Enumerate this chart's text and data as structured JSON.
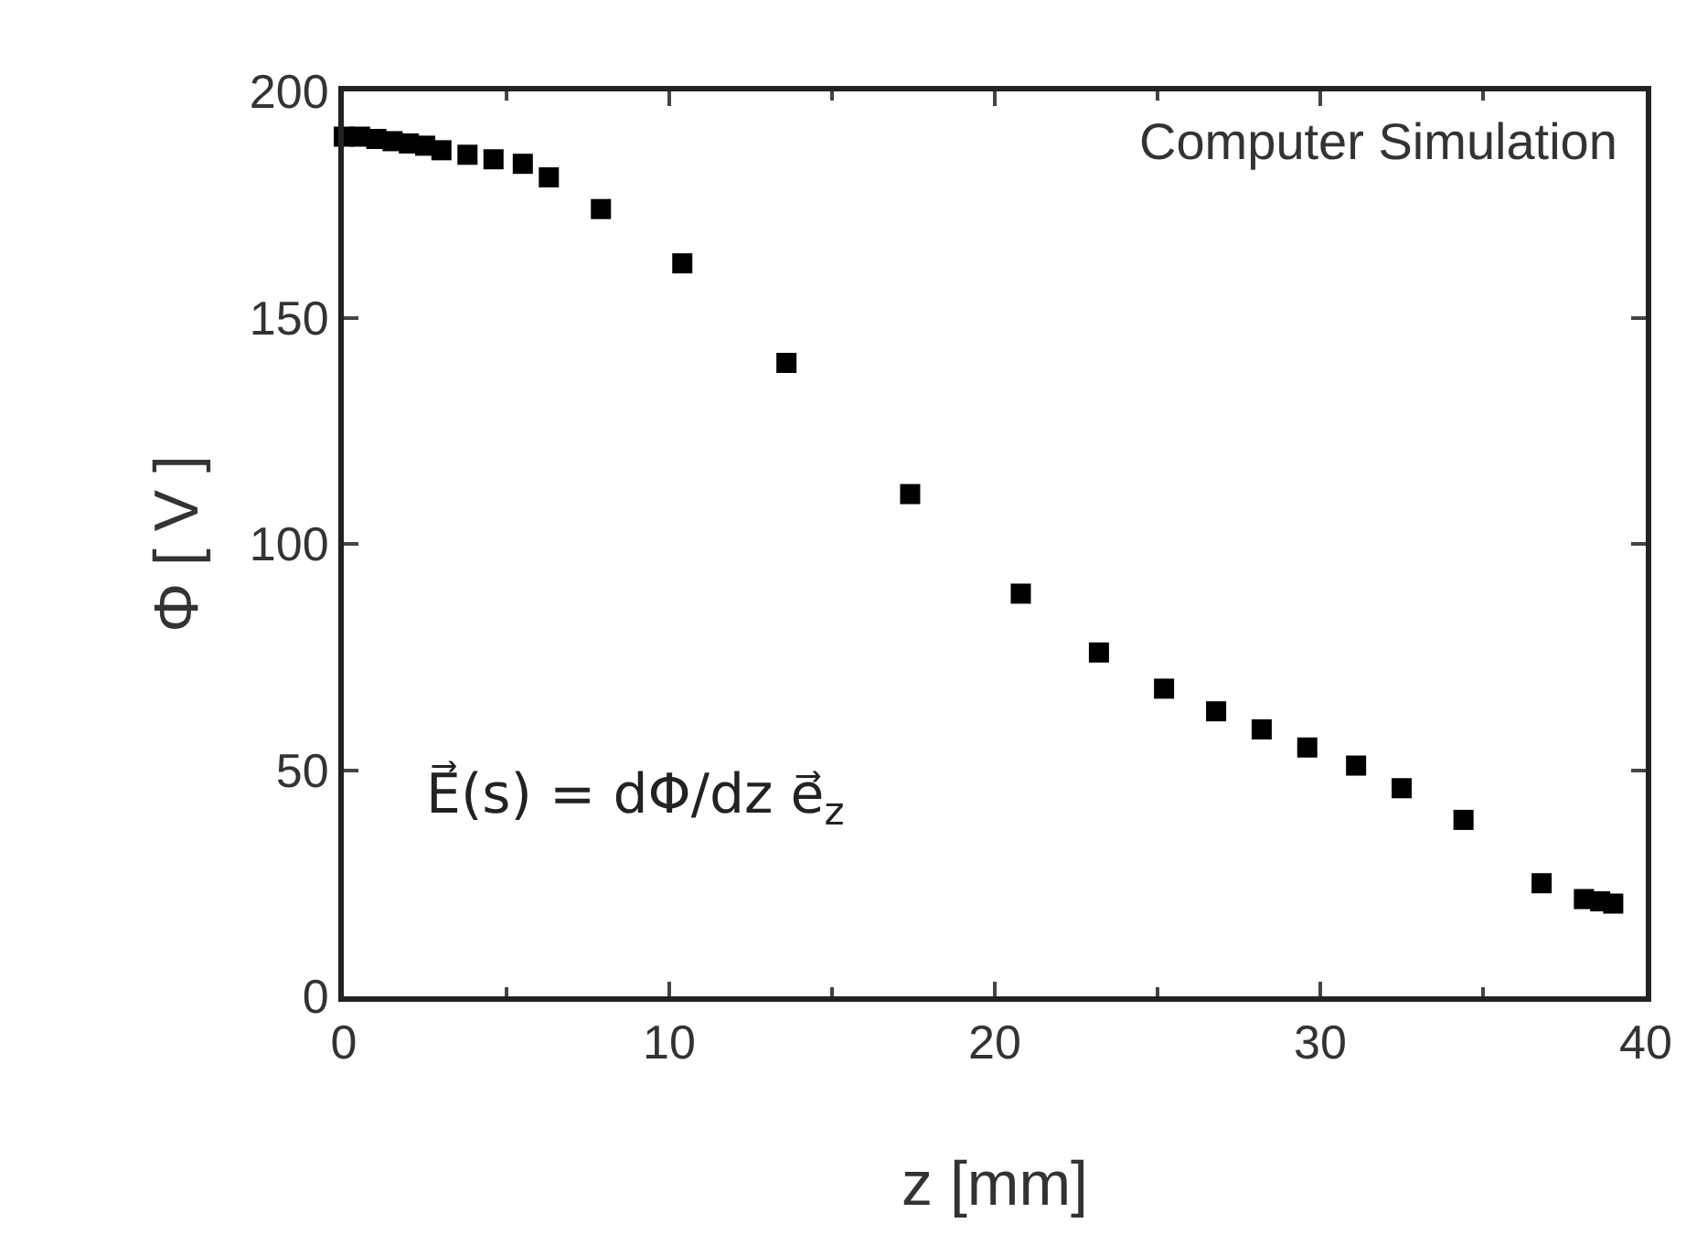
{
  "chart_data": {
    "type": "scatter",
    "xlabel": "z [mm]",
    "ylabel": "Φ [ V ]",
    "x": [
      0,
      0.5,
      1,
      1.5,
      2,
      2.5,
      3,
      3.8,
      4.6,
      5.5,
      6.3,
      7.9,
      10.4,
      13.6,
      17.4,
      20.8,
      23.2,
      25.2,
      26.8,
      28.2,
      29.6,
      31.1,
      32.5,
      34.4,
      36.8,
      38.1,
      38.6,
      39
    ],
    "values": [
      190,
      190,
      189.5,
      189,
      188.5,
      188,
      187,
      186,
      185,
      184,
      181,
      174,
      162,
      140,
      111,
      89,
      76,
      68,
      63,
      59,
      55,
      51,
      46,
      39,
      25,
      21.5,
      21,
      20.5
    ],
    "color": "#000000",
    "marker": "square",
    "xlim": [
      0,
      40
    ],
    "ylim": [
      0,
      200
    ],
    "xticks": [
      0,
      10,
      20,
      30,
      40
    ],
    "yticks": [
      0,
      50,
      100,
      150,
      200
    ],
    "grid": false,
    "annotations": [
      "Computer Simulation",
      "E⃗(s) = dΦ/dz e⃗$_{z}$"
    ]
  }
}
